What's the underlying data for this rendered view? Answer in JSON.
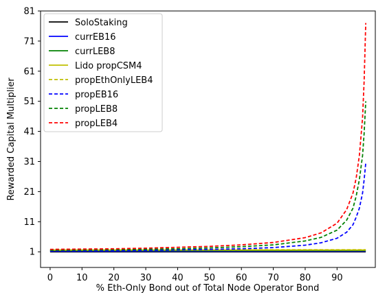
{
  "chart_data": {
    "type": "line",
    "xlabel": "% Eth-Only Bond out of Total Node Operator Bond",
    "ylabel": "Rewarded Capital Multiplier",
    "xlim": [
      -3,
      102
    ],
    "ylim": [
      -4.2,
      81
    ],
    "x_ticks": [
      0,
      10,
      20,
      30,
      40,
      50,
      60,
      70,
      80,
      90
    ],
    "x_tick_labels": [
      "0",
      "10",
      "20",
      "30",
      "40",
      "50",
      "60",
      "70",
      "80",
      "90"
    ],
    "y_ticks": [
      1,
      11,
      21,
      31,
      41,
      51,
      61,
      71,
      81
    ],
    "y_tick_labels": [
      "1",
      "11",
      "21",
      "31",
      "41",
      "51",
      "61",
      "71",
      "81"
    ],
    "grid": false,
    "legend_position": "upper-left",
    "series": [
      {
        "name": "SoloStaking",
        "color": "#000000",
        "style": "solid",
        "x": [
          0,
          99
        ],
        "y": [
          1.0,
          1.0
        ]
      },
      {
        "name": "currEB16",
        "color": "#0000ff",
        "style": "solid",
        "x": [
          0,
          99
        ],
        "y": [
          1.2,
          1.2
        ]
      },
      {
        "name": "currLEB8",
        "color": "#008000",
        "style": "solid",
        "x": [
          0,
          99
        ],
        "y": [
          1.4,
          1.4
        ]
      },
      {
        "name": "Lido propCSM4",
        "color": "#bfbf00",
        "style": "solid",
        "x": [
          0,
          99
        ],
        "y": [
          1.6,
          1.6
        ]
      },
      {
        "name": "propEthOnlyLEB4",
        "color": "#bfbf00",
        "style": "dashed",
        "x": [
          0,
          99
        ],
        "y": [
          1.7,
          1.7
        ]
      },
      {
        "name": "propEB16",
        "color": "#0000ff",
        "style": "dashed",
        "x": [
          0,
          10,
          20,
          30,
          40,
          50,
          60,
          70,
          80,
          85,
          90,
          93,
          95,
          96,
          97,
          98,
          98.5,
          99
        ],
        "y": [
          1.3,
          1.35,
          1.4,
          1.5,
          1.65,
          1.8,
          2.0,
          2.4,
          3.2,
          4.0,
          5.5,
          7.5,
          10.0,
          12.5,
          15.5,
          20.5,
          25.0,
          30.5
        ]
      },
      {
        "name": "propLEB8",
        "color": "#008000",
        "style": "dashed",
        "x": [
          0,
          10,
          20,
          30,
          40,
          50,
          60,
          70,
          80,
          85,
          90,
          93,
          95,
          96,
          97,
          98,
          98.5,
          99
        ],
        "y": [
          1.5,
          1.6,
          1.7,
          1.85,
          2.0,
          2.3,
          2.7,
          3.3,
          4.6,
          5.8,
          8.2,
          11.5,
          15.5,
          19.5,
          25.0,
          33.0,
          40.5,
          51.0
        ]
      },
      {
        "name": "propLEB4",
        "color": "#ff0000",
        "style": "dashed",
        "x": [
          0,
          10,
          20,
          30,
          40,
          50,
          60,
          70,
          80,
          85,
          90,
          93,
          95,
          96,
          97,
          98,
          98.5,
          99
        ],
        "y": [
          1.8,
          1.9,
          2.0,
          2.2,
          2.5,
          2.8,
          3.3,
          4.1,
          5.7,
          7.3,
          10.5,
          15.0,
          20.5,
          25.5,
          33.0,
          45.5,
          58.0,
          77.0
        ]
      }
    ]
  }
}
